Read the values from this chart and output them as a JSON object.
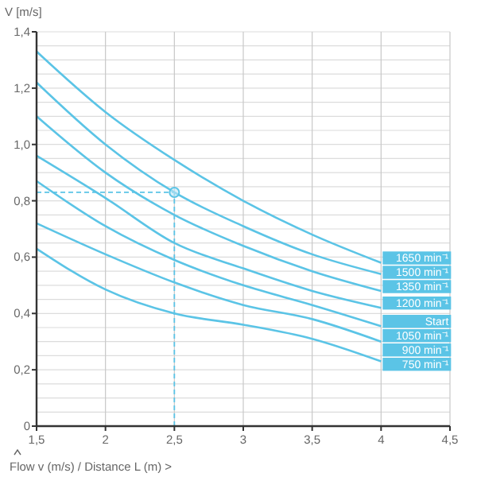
{
  "chart_data": {
    "type": "line",
    "ylabel": "V [m/s]",
    "xlabel": "Flow v (m/s) / Distance L (m) >",
    "x": [
      1.5,
      2,
      2.5,
      3,
      3.5,
      4
    ],
    "series": [
      {
        "name": "1650 min⁻¹",
        "color": "#5bc4e6",
        "values": [
          1.33,
          1.115,
          0.945,
          0.8,
          0.68,
          0.58
        ]
      },
      {
        "name": "1500 min⁻¹",
        "color": "#5bc4e6",
        "values": [
          1.22,
          1.0,
          0.83,
          0.71,
          0.61,
          0.54
        ]
      },
      {
        "name": "1350 min⁻¹",
        "color": "#5bc4e6",
        "values": [
          1.1,
          0.9,
          0.75,
          0.64,
          0.55,
          0.48
        ]
      },
      {
        "name": "1200 min⁻¹",
        "color": "#5bc4e6",
        "values": [
          0.96,
          0.81,
          0.65,
          0.56,
          0.48,
          0.42
        ]
      },
      {
        "name": "1050 min⁻¹",
        "color": "#5bc4e6",
        "values": [
          0.87,
          0.71,
          0.59,
          0.5,
          0.43,
          0.355
        ]
      },
      {
        "name": "900 min⁻¹",
        "color": "#5bc4e6",
        "values": [
          0.72,
          0.61,
          0.51,
          0.43,
          0.38,
          0.3
        ]
      },
      {
        "name": "750 min⁻¹",
        "color": "#5bc4e6",
        "values": [
          0.63,
          0.485,
          0.4,
          0.36,
          0.31,
          0.23
        ]
      },
      {
        "type": "scatter",
        "color": "#5bc4e6",
        "x": [
          2.5
        ],
        "values": [
          0.83
        ],
        "marker": "circle"
      }
    ],
    "annotations": [
      "Start"
    ],
    "ref_lines": [
      {
        "axis": "x",
        "value": 2.5,
        "color": "#5bc4e6",
        "line_style": "dashed"
      },
      {
        "axis": "y",
        "value": 0.83,
        "color": "#5bc4e6",
        "line_style": "dashed"
      }
    ],
    "xlim": [
      1.5,
      4.5
    ],
    "xticks": [
      {
        "value": 1.5,
        "label": "1,5"
      },
      2,
      {
        "value": 2.5,
        "label": "2,5"
      },
      3,
      {
        "value": 3.5,
        "label": "3,5"
      },
      4,
      {
        "value": 4.5,
        "label": "4,5"
      }
    ],
    "ylim": [
      0,
      1.4
    ],
    "yticks": [
      0,
      {
        "value": 0.05,
        "label": null
      },
      {
        "value": 0.1,
        "label": null
      },
      {
        "value": 0.15,
        "label": null
      },
      {
        "value": 0.2,
        "label": "0,2"
      },
      {
        "value": 0.25,
        "label": null
      },
      {
        "value": 0.3,
        "label": null
      },
      {
        "value": 0.35,
        "label": null
      },
      {
        "value": 0.4,
        "label": "0,4"
      },
      {
        "value": 0.45,
        "label": null
      },
      {
        "value": 0.5,
        "label": null
      },
      {
        "value": 0.55,
        "label": null
      },
      {
        "value": 0.6,
        "label": "0,6"
      },
      {
        "value": 0.65,
        "label": null
      },
      {
        "value": 0.7,
        "label": null
      },
      {
        "value": 0.75,
        "label": null
      },
      {
        "value": 0.8,
        "label": "0,8"
      },
      {
        "value": 0.85,
        "label": null
      },
      {
        "value": 0.9,
        "label": null
      },
      {
        "value": 0.95,
        "label": null
      },
      {
        "value": 1.0,
        "label": "1,0"
      },
      {
        "value": 1.05,
        "label": null
      },
      {
        "value": 1.1,
        "label": null
      },
      {
        "value": 1.15,
        "label": null
      },
      {
        "value": 1.2,
        "label": "1,2"
      },
      {
        "value": 1.25,
        "label": null
      },
      {
        "value": 1.3,
        "label": null
      },
      {
        "value": 1.35,
        "label": null
      },
      {
        "value": 1.4,
        "label": "1,4"
      }
    ],
    "grid": true,
    "marker": "none",
    "line_style": "solid"
  }
}
